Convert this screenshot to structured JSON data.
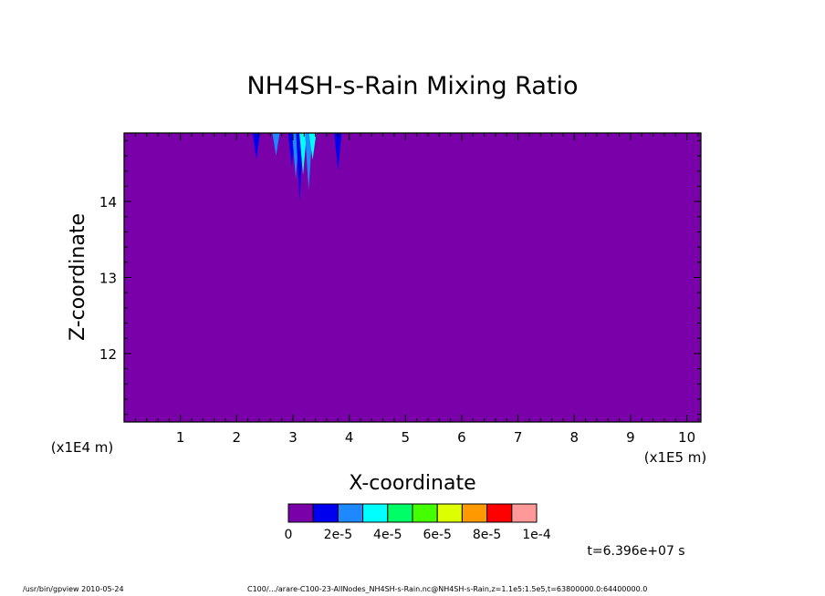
{
  "chart_data": {
    "type": "heatmap",
    "title": "NH4SH-s-Rain Mixing Ratio",
    "xlabel": "X-coordinate",
    "ylabel": "Z-coordinate",
    "x_scale_label": "(x1E5 m)",
    "y_scale_label": "(x1E4 m)",
    "x_ticks": [
      "1",
      "2",
      "3",
      "4",
      "5",
      "6",
      "7",
      "8",
      "9",
      "10"
    ],
    "y_ticks": [
      "12",
      "13",
      "14"
    ],
    "xlim": [
      0,
      10.25
    ],
    "ylim": [
      11.1,
      14.9
    ],
    "background_value": 0,
    "colorbar": {
      "colors": [
        "#7a00aa",
        "#0000ee",
        "#1e88ff",
        "#00ffff",
        "#00ff66",
        "#44ff00",
        "#ddff00",
        "#ff9900",
        "#ff0000",
        "#ff9999"
      ],
      "labels": [
        "0",
        "2e-5",
        "4e-5",
        "6e-5",
        "8e-5",
        "1e-4"
      ],
      "min": 0,
      "max": 0.0001
    },
    "features": [
      {
        "x": 2.35,
        "z_bottom": 14.55,
        "color": "#0000ee"
      },
      {
        "x": 2.7,
        "z_bottom": 14.6,
        "color": "#1e88ff"
      },
      {
        "x": 2.98,
        "z_bottom": 14.45,
        "color": "#0000ee"
      },
      {
        "x": 3.05,
        "z_bottom": 14.3,
        "color": "#1e88ff"
      },
      {
        "x": 3.12,
        "z_bottom": 14.0,
        "color": "#0000ee"
      },
      {
        "x": 3.18,
        "z_bottom": 14.35,
        "color": "#00ffff"
      },
      {
        "x": 3.28,
        "z_bottom": 14.15,
        "color": "#1e88ff"
      },
      {
        "x": 3.35,
        "z_bottom": 14.55,
        "color": "#00ffff"
      },
      {
        "x": 3.8,
        "z_bottom": 14.4,
        "color": "#0000ee"
      }
    ],
    "time_label": "t=6.396e+07 s"
  },
  "footer": {
    "left": "/usr/bin/gpview  2010-05-24",
    "right": "C100/.../arare-C100-23-AllNodes_NH4SH-s-Rain.nc@NH4SH-s-Rain,z=1.1e5:1.5e5,t=63800000.0:64400000.0"
  }
}
